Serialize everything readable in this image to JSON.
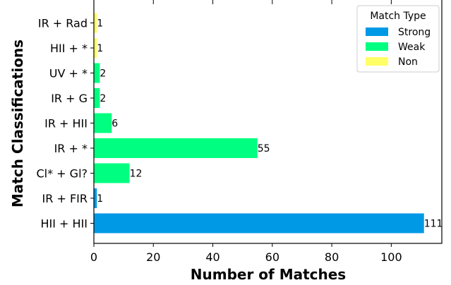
{
  "chart_data": {
    "type": "bar",
    "orientation": "horizontal",
    "xlabel": "Number of Matches",
    "ylabel": "Match Classifications",
    "xlim": [
      0,
      117
    ],
    "x_ticks": [
      0,
      20,
      40,
      60,
      80,
      100
    ],
    "grid": false,
    "legend": {
      "title": "Match Type",
      "placement": "top-right",
      "entries": [
        {
          "name": "Strong",
          "color": "#0099e6"
        },
        {
          "name": "Weak",
          "color": "#00ff80"
        },
        {
          "name": "Non",
          "color": "#ffff66"
        }
      ]
    },
    "bars": [
      {
        "category": "HII + HII",
        "value": 111,
        "type": "Strong"
      },
      {
        "category": "IR + FIR",
        "value": 1,
        "type": "Strong"
      },
      {
        "category": "Cl* + Gl?",
        "value": 12,
        "type": "Weak"
      },
      {
        "category": "IR + *",
        "value": 55,
        "type": "Weak"
      },
      {
        "category": "IR + HII",
        "value": 6,
        "type": "Weak"
      },
      {
        "category": "IR + G",
        "value": 2,
        "type": "Weak"
      },
      {
        "category": "UV + *",
        "value": 2,
        "type": "Weak"
      },
      {
        "category": "HII + *",
        "value": 1,
        "type": "Non"
      },
      {
        "category": "IR + Rad",
        "value": 1,
        "type": "Non"
      }
    ]
  }
}
